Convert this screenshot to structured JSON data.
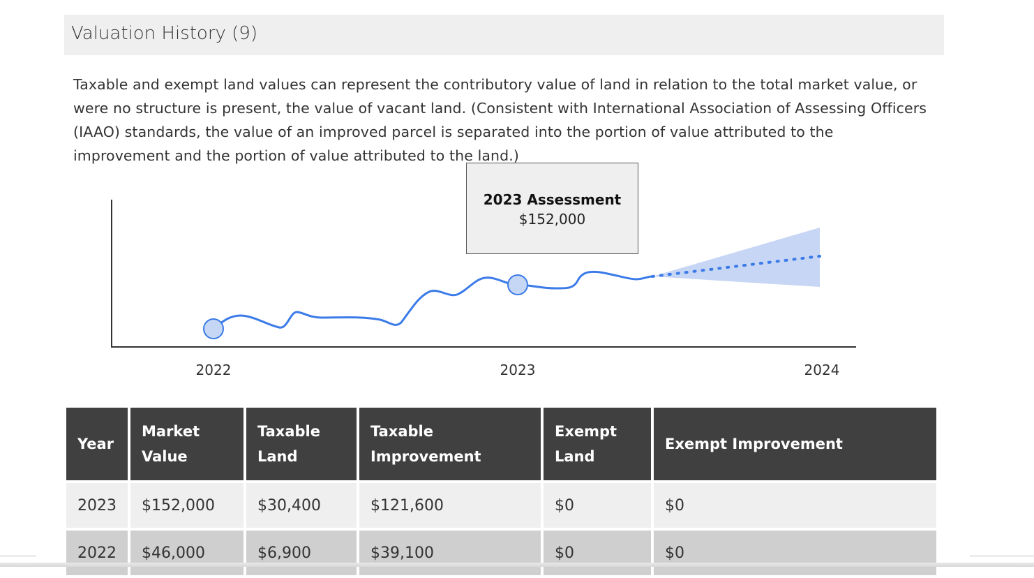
{
  "section": {
    "title": "Valuation History (9)"
  },
  "description": "Taxable and exempt land values can represent the contributory value of land in relation to the total market value, or were no structure is present, the value of vacant land. (Consistent with International Association of Assessing Officers (IAAO) standards, the value of an improved parcel is separated into the portion of value attributed to the improvement and the portion of value attributed to the land.)",
  "tooltip": {
    "title": "2023 Assessment",
    "value": "$152,000"
  },
  "colors": {
    "line": "#3b7be8",
    "forecast_band": "#c8d6f5",
    "marker_fill": "#c6d6f5",
    "header_bg": "#404040"
  },
  "chart_data": {
    "type": "line",
    "title": "",
    "xlabel": "",
    "ylabel": "",
    "x_ticks": [
      "2022",
      "2023",
      "2024"
    ],
    "markers": [
      {
        "year": "2022",
        "value": 46000
      },
      {
        "year": "2023",
        "value": 152000
      }
    ],
    "forecast": {
      "style": "dotted",
      "band": true
    },
    "grid": false
  },
  "table": {
    "headers": [
      "Year",
      "Market Value",
      "Taxable Land",
      "Taxable Improvement",
      "Exempt Land",
      "Exempt Improvement"
    ],
    "rows": [
      [
        "2023",
        "$152,000",
        "$30,400",
        "$121,600",
        "$0",
        "$0"
      ],
      [
        "2022",
        "$46,000",
        "$6,900",
        "$39,100",
        "$0",
        "$0"
      ]
    ]
  }
}
